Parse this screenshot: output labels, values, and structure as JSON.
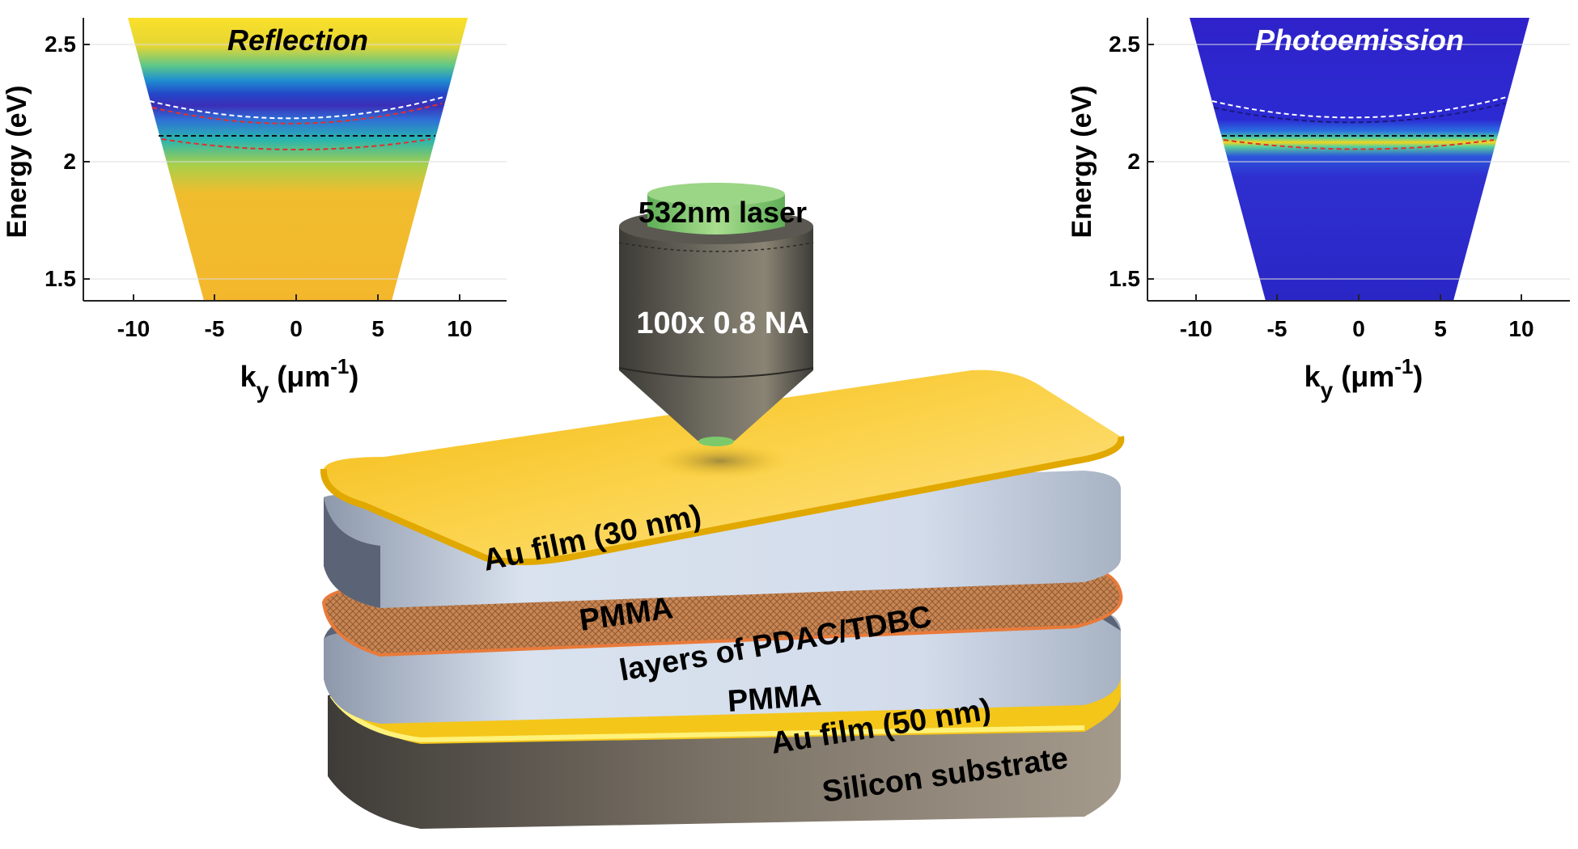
{
  "plots": {
    "left": {
      "title": "Reflection",
      "ylabel": "Energy (eV)",
      "xlabel_main": "k",
      "xlabel_sub": "y",
      "xlabel_unit": " (μm",
      "xlabel_sup": "-1",
      "xlabel_close": ")",
      "xticks": [
        "-10",
        "-5",
        "0",
        "5",
        "10"
      ],
      "yticks": [
        "2.5",
        "2",
        "1.5"
      ]
    },
    "right": {
      "title": "Photoemission",
      "ylabel": "Energy (eV)",
      "xlabel_main": "k",
      "xlabel_sub": "y",
      "xlabel_unit": " (μm",
      "xlabel_sup": "-1",
      "xlabel_close": ")",
      "xticks": [
        "-10",
        "-5",
        "0",
        "5",
        "10"
      ],
      "yticks": [
        "2.5",
        "2",
        "1.5"
      ]
    }
  },
  "objective": {
    "laser_label": "532nm laser",
    "na_label": "100x 0.8 NA"
  },
  "stack": {
    "au_top": "Au film (30 nm)",
    "pmma_top": "PMMA",
    "pdac": "layers of PDAC/TDBC",
    "pmma_bottom": "PMMA",
    "au_bottom": "Au film (50 nm)",
    "substrate": "Silicon substrate"
  },
  "colors": {
    "gold": "#f7c21a",
    "pmma_face": "#cfd9e8",
    "pmma_side": "#5b6476",
    "pdac": "#c98552",
    "substrate": "#55514c",
    "objective": "#4b4a45",
    "laser_green": "#7cc96c",
    "spectrum_blue": "#2b2bd0"
  }
}
